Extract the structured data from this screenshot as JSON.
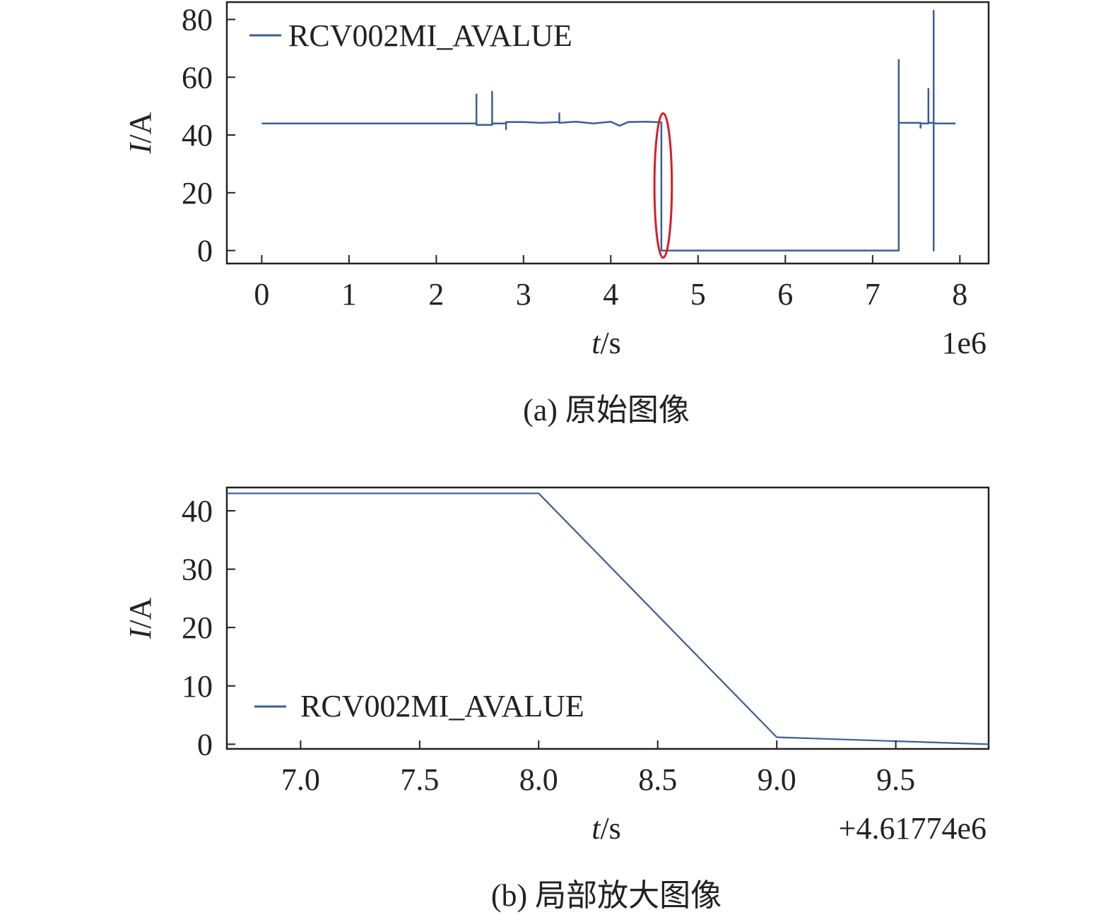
{
  "chart_data": [
    {
      "type": "line",
      "caption": "(a) 原始图像",
      "xlabel": "t/s",
      "ylabel": "I/A",
      "x_offset_label": "1e6",
      "xlim": [
        -0.4,
        8.33
      ],
      "ylim": [
        -4.5,
        86
      ],
      "xticks": [
        0,
        1,
        2,
        3,
        4,
        5,
        6,
        7,
        8
      ],
      "yticks": [
        0,
        20,
        40,
        60,
        80
      ],
      "grid": false,
      "legend_position": "top-left",
      "color": "#3a5f93",
      "highlight_color": "#d81e28",
      "highlight": {
        "x_center": 4.6,
        "x_halfwidth": 0.1,
        "y_center": 22.5,
        "y_halfwidth": 25
      },
      "series": [
        {
          "name": "RCV002MI_AVALUE",
          "points": [
            [
              0.0,
              44.0
            ],
            [
              2.46,
              44.0
            ],
            [
              2.46,
              54.0
            ],
            [
              2.46,
              43.5
            ],
            [
              2.64,
              43.5
            ],
            [
              2.64,
              55.0
            ],
            [
              2.64,
              44.0
            ],
            [
              2.8,
              44.0
            ],
            [
              2.8,
              42.0
            ],
            [
              2.8,
              44.5
            ],
            [
              3.0,
              44.5
            ],
            [
              3.2,
              44.2
            ],
            [
              3.41,
              44.5
            ],
            [
              3.41,
              47.5
            ],
            [
              3.41,
              44.2
            ],
            [
              3.6,
              44.6
            ],
            [
              3.8,
              44.0
            ],
            [
              4.0,
              44.6
            ],
            [
              4.1,
              43.2
            ],
            [
              4.2,
              44.5
            ],
            [
              4.4,
              44.6
            ],
            [
              4.58,
              44.4
            ],
            [
              4.58,
              0.0
            ],
            [
              4.62,
              0.0
            ],
            [
              7.3,
              0.0
            ],
            [
              7.3,
              66.0
            ],
            [
              7.3,
              44.2
            ],
            [
              7.55,
              44.2
            ],
            [
              7.55,
              42.5
            ],
            [
              7.55,
              44.0
            ],
            [
              7.64,
              44.0
            ],
            [
              7.64,
              56.0
            ],
            [
              7.64,
              44.2
            ],
            [
              7.7,
              44.2
            ],
            [
              7.7,
              0.0
            ],
            [
              7.7,
              83.0
            ],
            [
              7.7,
              44.0
            ],
            [
              7.95,
              44.0
            ]
          ]
        }
      ]
    },
    {
      "type": "line",
      "caption": "(b) 局部放大图像",
      "xlabel": "t/s",
      "ylabel": "I/A",
      "x_offset_label": "+4.61774e6",
      "xlim": [
        6.69,
        9.89
      ],
      "ylim": [
        -0.8,
        44
      ],
      "xticks": [
        "7.0",
        "7.5",
        "8.0",
        "8.5",
        "9.0",
        "9.5"
      ],
      "yticks": [
        0,
        10,
        20,
        30,
        40
      ],
      "grid": false,
      "legend_position": "lower-left",
      "color": "#3a5f93",
      "series": [
        {
          "name": "RCV002MI_AVALUE",
          "points": [
            [
              6.69,
              43.0
            ],
            [
              8.0,
              43.0
            ],
            [
              9.0,
              1.2
            ],
            [
              9.89,
              0.0
            ]
          ]
        }
      ]
    }
  ]
}
